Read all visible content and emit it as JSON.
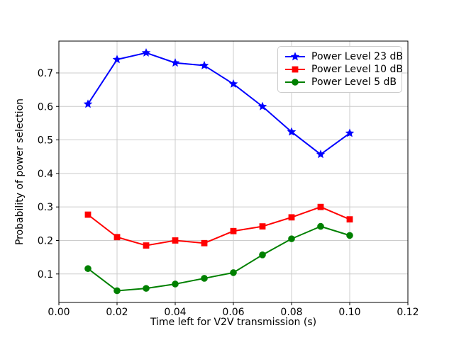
{
  "chart_data": {
    "type": "line",
    "title": "",
    "xlabel": "Time left for V2V transmission (s)",
    "ylabel": "Probability of power selection",
    "x": [
      0.01,
      0.02,
      0.03,
      0.04,
      0.05,
      0.06,
      0.07,
      0.08,
      0.09,
      0.1
    ],
    "series": [
      {
        "name": "Power Level 23 dB",
        "color": "#0000ff",
        "marker": "star",
        "values": [
          0.607,
          0.74,
          0.76,
          0.73,
          0.722,
          0.667,
          0.6,
          0.524,
          0.457,
          0.52
        ]
      },
      {
        "name": "Power Level 10 dB",
        "color": "#ff0000",
        "marker": "square",
        "values": [
          0.277,
          0.21,
          0.185,
          0.2,
          0.192,
          0.228,
          0.242,
          0.269,
          0.3,
          0.263
        ]
      },
      {
        "name": "Power Level 5 dB",
        "color": "#008000",
        "marker": "circle",
        "values": [
          0.116,
          0.05,
          0.057,
          0.07,
          0.087,
          0.104,
          0.157,
          0.205,
          0.242,
          0.215
        ]
      }
    ],
    "xlim": [
      0.0,
      0.12
    ],
    "ylim": [
      0.015,
      0.795
    ],
    "x_tick_values": [
      0.0,
      0.02,
      0.04,
      0.06,
      0.08,
      0.1,
      0.12
    ],
    "x_tick_labels": [
      "0.00",
      "0.02",
      "0.04",
      "0.06",
      "0.08",
      "0.10",
      "0.12"
    ],
    "y_tick_values": [
      0.1,
      0.2,
      0.3,
      0.4,
      0.5,
      0.6,
      0.7
    ],
    "y_tick_labels": [
      "0.1",
      "0.2",
      "0.3",
      "0.4",
      "0.5",
      "0.6",
      "0.7"
    ],
    "grid": true,
    "grid_color": "#cccccc",
    "axis_color": "#000000",
    "background_color": "#ffffff",
    "legend_position": "upper right"
  }
}
